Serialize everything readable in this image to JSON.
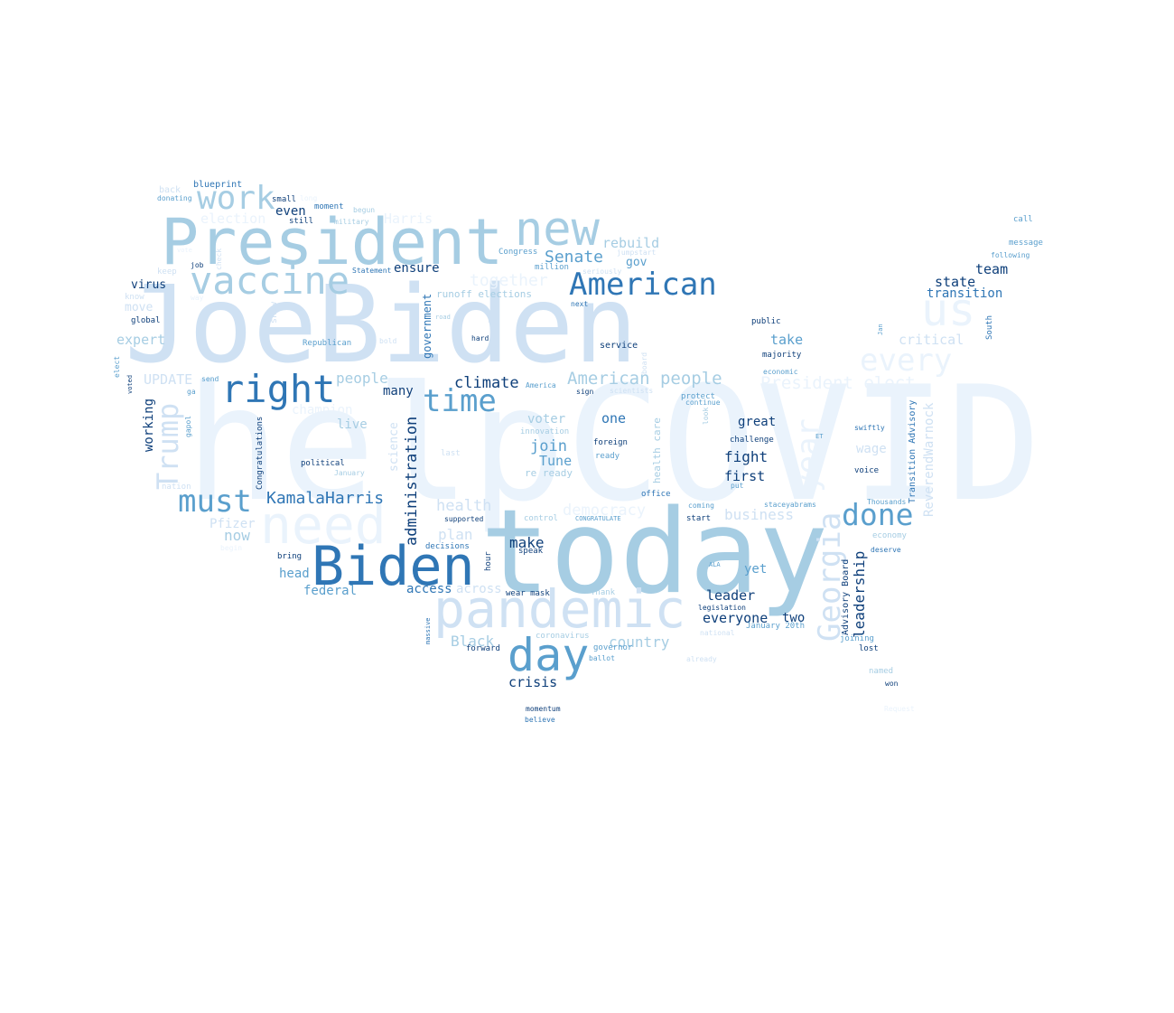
{
  "palette": {
    "c1": "#eaf3fc",
    "c2": "#cfe1f3",
    "c3": "#a6cde3",
    "c4": "#5a9fcd",
    "c5": "#2f76b5",
    "c6": "#0e3f7a"
  },
  "words": [
    {
      "text": "helpCOVID",
      "color": "c1"
    },
    {
      "text": "JoeBiden",
      "color": "c2"
    },
    {
      "text": "today",
      "color": "c3"
    },
    {
      "text": "President",
      "color": "c3"
    },
    {
      "text": "pandemic",
      "color": "c2"
    },
    {
      "text": "need",
      "color": "c1"
    },
    {
      "text": "Biden",
      "color": "c5"
    },
    {
      "text": "new",
      "color": "c3"
    },
    {
      "text": "vaccine",
      "color": "c3"
    },
    {
      "text": "American",
      "color": "c5"
    },
    {
      "text": "right",
      "color": "c5"
    },
    {
      "text": "day",
      "color": "c4"
    },
    {
      "text": "us",
      "color": "c1"
    },
    {
      "text": "work",
      "color": "c3"
    },
    {
      "text": "must",
      "color": "c4"
    },
    {
      "text": "time",
      "color": "c4"
    },
    {
      "text": "done",
      "color": "c4"
    },
    {
      "text": "every",
      "color": "c1"
    },
    {
      "text": "year",
      "color": "c1"
    },
    {
      "text": "Georgia",
      "color": "c2"
    },
    {
      "text": "Trump",
      "color": "c2"
    },
    {
      "text": "American people",
      "color": "c3"
    },
    {
      "text": "President elect",
      "color": "c1"
    },
    {
      "text": "KamalaHarris",
      "color": "c5"
    },
    {
      "text": "Senate",
      "color": "c4"
    },
    {
      "text": "rebuild",
      "color": "c3"
    },
    {
      "text": "election",
      "color": "c1"
    },
    {
      "text": "Harris",
      "color": "c1"
    },
    {
      "text": "together",
      "color": "c1"
    },
    {
      "text": "team",
      "color": "c6"
    },
    {
      "text": "state",
      "color": "c6"
    },
    {
      "text": "transition",
      "color": "c5"
    },
    {
      "text": "critical",
      "color": "c2"
    },
    {
      "text": "take",
      "color": "c4"
    },
    {
      "text": "climate",
      "color": "c6"
    },
    {
      "text": "people",
      "color": "c3"
    },
    {
      "text": "many",
      "color": "c6"
    },
    {
      "text": "voter",
      "color": "c3"
    },
    {
      "text": "one",
      "color": "c5"
    },
    {
      "text": "join",
      "color": "c4"
    },
    {
      "text": "Tune",
      "color": "c4"
    },
    {
      "text": "great",
      "color": "c6"
    },
    {
      "text": "fight",
      "color": "c6"
    },
    {
      "text": "first",
      "color": "c6"
    },
    {
      "text": "health",
      "color": "c2"
    },
    {
      "text": "democracy",
      "color": "c1"
    },
    {
      "text": "business",
      "color": "c2"
    },
    {
      "text": "plan",
      "color": "c2"
    },
    {
      "text": "make",
      "color": "c6"
    },
    {
      "text": "head",
      "color": "c4"
    },
    {
      "text": "federal",
      "color": "c4"
    },
    {
      "text": "access",
      "color": "c5"
    },
    {
      "text": "across",
      "color": "c2"
    },
    {
      "text": "now",
      "color": "c3"
    },
    {
      "text": "Pfizer",
      "color": "c2"
    },
    {
      "text": "yet",
      "color": "c4"
    },
    {
      "text": "leader",
      "color": "c6"
    },
    {
      "text": "everyone",
      "color": "c6"
    },
    {
      "text": "two",
      "color": "c6"
    },
    {
      "text": "country",
      "color": "c3"
    },
    {
      "text": "Black",
      "color": "c3"
    },
    {
      "text": "crisis",
      "color": "c6"
    },
    {
      "text": "virus",
      "color": "c6"
    },
    {
      "text": "move",
      "color": "c2"
    },
    {
      "text": "expert",
      "color": "c3"
    },
    {
      "text": "UPDATE",
      "color": "c2"
    },
    {
      "text": "even",
      "color": "c6"
    },
    {
      "text": "ensure",
      "color": "c6"
    },
    {
      "text": "gov",
      "color": "c4"
    },
    {
      "text": "runoff elections",
      "color": "c3"
    },
    {
      "text": "live",
      "color": "c3"
    },
    {
      "text": "champion",
      "color": "c1"
    },
    {
      "text": "wage",
      "color": "c2"
    },
    {
      "text": "working",
      "color": "c6"
    },
    {
      "text": "administration",
      "color": "c6"
    },
    {
      "text": "government",
      "color": "c5"
    },
    {
      "text": "leadership",
      "color": "c6"
    },
    {
      "text": "ReverendWarnock",
      "color": "c2"
    },
    {
      "text": "Advisory Board",
      "color": "c6"
    },
    {
      "text": "Transition Advisory",
      "color": "c5"
    },
    {
      "text": "health care",
      "color": "c3"
    },
    {
      "text": "science",
      "color": "c2"
    },
    {
      "text": "ossoff",
      "color": "c2"
    },
    {
      "text": "show",
      "color": "c2"
    },
    {
      "text": "Congratulations",
      "color": "c6"
    },
    {
      "text": "blueprint",
      "color": "c5"
    },
    {
      "text": "back",
      "color": "c2"
    },
    {
      "text": "donating",
      "color": "c4"
    },
    {
      "text": "small",
      "color": "c6"
    },
    {
      "text": "long",
      "color": "c1"
    },
    {
      "text": "moment",
      "color": "c5"
    },
    {
      "text": "begun",
      "color": "c3"
    },
    {
      "text": "still",
      "color": "c6"
    },
    {
      "text": "military",
      "color": "c3"
    },
    {
      "text": "Congress",
      "color": "c4"
    },
    {
      "text": "jumpstart",
      "color": "c2"
    },
    {
      "text": "million",
      "color": "c4"
    },
    {
      "text": "seriously",
      "color": "c2"
    },
    {
      "text": "Statement",
      "color": "c5"
    },
    {
      "text": "job",
      "color": "c6"
    },
    {
      "text": "keep",
      "color": "c2"
    },
    {
      "text": "vote",
      "color": "c1"
    },
    {
      "text": "check",
      "color": "c2"
    },
    {
      "text": "know",
      "color": "c2"
    },
    {
      "text": "way",
      "color": "c1"
    },
    {
      "text": "global",
      "color": "c6"
    },
    {
      "text": "Republican",
      "color": "c4"
    },
    {
      "text": "bold",
      "color": "c2"
    },
    {
      "text": "road",
      "color": "c3"
    },
    {
      "text": "hard",
      "color": "c6"
    },
    {
      "text": "next",
      "color": "c5"
    },
    {
      "text": "service",
      "color": "c6"
    },
    {
      "text": "public",
      "color": "c6"
    },
    {
      "text": "majority",
      "color": "c6"
    },
    {
      "text": "economic",
      "color": "c4"
    },
    {
      "text": "protect",
      "color": "c4"
    },
    {
      "text": "continue",
      "color": "c4"
    },
    {
      "text": "scientists",
      "color": "c2"
    },
    {
      "text": "sign",
      "color": "c6"
    },
    {
      "text": "America",
      "color": "c4"
    },
    {
      "text": "board",
      "color": "c2"
    },
    {
      "text": "send",
      "color": "c4"
    },
    {
      "text": "months",
      "color": "c1"
    },
    {
      "text": "ga",
      "color": "c4"
    },
    {
      "text": "gapol",
      "color": "c4"
    },
    {
      "text": "elect",
      "color": "c4"
    },
    {
      "text": "voted",
      "color": "c6"
    },
    {
      "text": "nation",
      "color": "c2"
    },
    {
      "text": "political",
      "color": "c6"
    },
    {
      "text": "January",
      "color": "c3"
    },
    {
      "text": "last",
      "color": "c2"
    },
    {
      "text": "innovation",
      "color": "c3"
    },
    {
      "text": "foreign",
      "color": "c6"
    },
    {
      "text": "ready",
      "color": "c4"
    },
    {
      "text": "re ready",
      "color": "c3"
    },
    {
      "text": "challenge",
      "color": "c6"
    },
    {
      "text": "swiftly",
      "color": "c5"
    },
    {
      "text": "ET",
      "color": "c4"
    },
    {
      "text": "voice",
      "color": "c6"
    },
    {
      "text": "put",
      "color": "c4"
    },
    {
      "text": "office",
      "color": "c5"
    },
    {
      "text": "coming",
      "color": "c4"
    },
    {
      "text": "start",
      "color": "c6"
    },
    {
      "text": "staceyabrams",
      "color": "c4"
    },
    {
      "text": "Thousands",
      "color": "c4"
    },
    {
      "text": "economy",
      "color": "c3"
    },
    {
      "text": "deserve",
      "color": "c5"
    },
    {
      "text": "supported",
      "color": "c6"
    },
    {
      "text": "control",
      "color": "c3"
    },
    {
      "text": "CONGRATULATE",
      "color": "c4"
    },
    {
      "text": "decisions",
      "color": "c5"
    },
    {
      "text": "speak",
      "color": "c6"
    },
    {
      "text": "hour",
      "color": "c6"
    },
    {
      "text": "bring",
      "color": "c6"
    },
    {
      "text": "begin",
      "color": "c1"
    },
    {
      "text": "ALA",
      "color": "c4"
    },
    {
      "text": "wear mask",
      "color": "c6"
    },
    {
      "text": "Thank",
      "color": "c3"
    },
    {
      "text": "legislation",
      "color": "c6"
    },
    {
      "text": "January 20th",
      "color": "c4"
    },
    {
      "text": "national",
      "color": "c2"
    },
    {
      "text": "coronavirus",
      "color": "c3"
    },
    {
      "text": "forward",
      "color": "c6"
    },
    {
      "text": "governor",
      "color": "c4"
    },
    {
      "text": "ballot",
      "color": "c4"
    },
    {
      "text": "already",
      "color": "c2"
    },
    {
      "text": "massive",
      "color": "c5"
    },
    {
      "text": "joining",
      "color": "c4"
    },
    {
      "text": "lost",
      "color": "c6"
    },
    {
      "text": "named",
      "color": "c3"
    },
    {
      "text": "won",
      "color": "c6"
    },
    {
      "text": "Request",
      "color": "c1"
    },
    {
      "text": "momentum",
      "color": "c6"
    },
    {
      "text": "believe",
      "color": "c5"
    },
    {
      "text": "call",
      "color": "c4"
    },
    {
      "text": "message",
      "color": "c4"
    },
    {
      "text": "following",
      "color": "c4"
    },
    {
      "text": "Jan",
      "color": "c4"
    },
    {
      "text": "South",
      "color": "c5"
    },
    {
      "text": "look",
      "color": "c3"
    }
  ]
}
